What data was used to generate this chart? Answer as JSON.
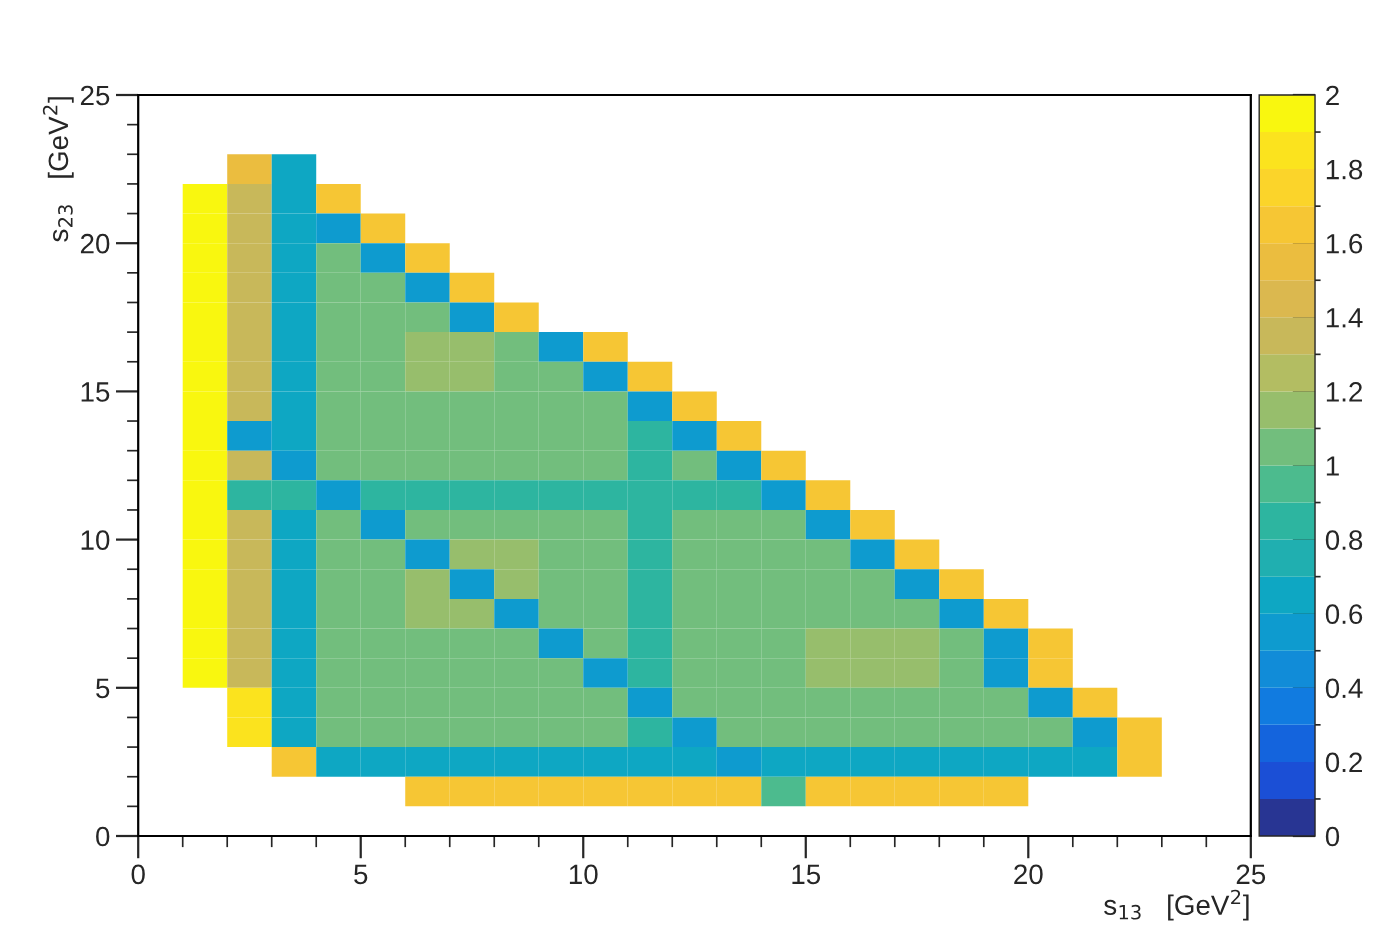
{
  "chart_data": {
    "type": "heatmap",
    "xlabel": "s$_{13}$   [GeV$^{2}$]",
    "ylabel": "s$_{23}$   [GeV$^{2}$]",
    "x": [
      0.5,
      1.5,
      2.5,
      3.5,
      4.5,
      5.5,
      6.5,
      7.5,
      8.5,
      9.5,
      10.5,
      11.5,
      12.5,
      13.5,
      14.5,
      15.5,
      16.5,
      17.5,
      18.5,
      19.5,
      20.5,
      21.5,
      22.5
    ],
    "y": [
      22.5,
      21.5,
      20.5,
      19.5,
      18.5,
      17.5,
      16.5,
      15.5,
      14.5,
      13.5,
      12.5,
      11.5,
      10.5,
      9.5,
      8.5,
      7.5,
      6.5,
      5.5,
      4.5,
      3.5,
      2.5,
      1.5
    ],
    "xlim": [
      0,
      25
    ],
    "ylim": [
      0,
      25
    ],
    "xticks": [
      0,
      {
        "value": 1,
        "label": null
      },
      {
        "value": 2,
        "label": null
      },
      {
        "value": 3,
        "label": null
      },
      {
        "value": 4,
        "label": null
      },
      5,
      {
        "value": 6,
        "label": null
      },
      {
        "value": 7,
        "label": null
      },
      {
        "value": 8,
        "label": null
      },
      {
        "value": 9,
        "label": null
      },
      10,
      {
        "value": 11,
        "label": null
      },
      {
        "value": 12,
        "label": null
      },
      {
        "value": 13,
        "label": null
      },
      {
        "value": 14,
        "label": null
      },
      15,
      {
        "value": 16,
        "label": null
      },
      {
        "value": 17,
        "label": null
      },
      {
        "value": 18,
        "label": null
      },
      {
        "value": 19,
        "label": null
      },
      20,
      {
        "value": 21,
        "label": null
      },
      {
        "value": 22,
        "label": null
      },
      {
        "value": 23,
        "label": null
      },
      {
        "value": 24,
        "label": null
      },
      25
    ],
    "yticks": [
      0,
      {
        "value": 1,
        "label": null
      },
      {
        "value": 2,
        "label": null
      },
      {
        "value": 3,
        "label": null
      },
      {
        "value": 4,
        "label": null
      },
      5,
      {
        "value": 6,
        "label": null
      },
      {
        "value": 7,
        "label": null
      },
      {
        "value": 8,
        "label": null
      },
      {
        "value": 9,
        "label": null
      },
      10,
      {
        "value": 11,
        "label": null
      },
      {
        "value": 12,
        "label": null
      },
      {
        "value": 13,
        "label": null
      },
      {
        "value": 14,
        "label": null
      },
      15,
      {
        "value": 16,
        "label": null
      },
      {
        "value": 17,
        "label": null
      },
      {
        "value": 18,
        "label": null
      },
      {
        "value": 19,
        "label": null
      },
      20,
      {
        "value": 21,
        "label": null
      },
      {
        "value": 22,
        "label": null
      },
      {
        "value": 23,
        "label": null
      },
      {
        "value": 24,
        "label": null
      },
      25
    ],
    "clim": [
      0,
      2
    ],
    "cticks": [
      0,
      0.2,
      0.4,
      0.6,
      0.8,
      1,
      1.2,
      1.4,
      1.6,
      1.8,
      2
    ],
    "colors": [
      "#283593",
      "#1b4fd6",
      "#1464dd",
      "#117be0",
      "#118cd8",
      "#0e9bcf",
      "#0ea7c3",
      "#20afb0",
      "#2db5a0",
      "#4cbb8e",
      "#72be7d",
      "#97be6c",
      "#b3bd62",
      "#c8b85a",
      "#dbb84f",
      "#ebbd3f",
      "#f6c634",
      "#fbd42a",
      "#fbe31e",
      "#f9f70f"
    ],
    "grid": false,
    "legend": false,
    "cells": [
      [
        null,
        null,
        1.5,
        0.7,
        null,
        null,
        null,
        null,
        null,
        null,
        null,
        null,
        null,
        null,
        null,
        null,
        null,
        null,
        null,
        null,
        null,
        null,
        null
      ],
      [
        null,
        2,
        1.3,
        0.7,
        1.7,
        null,
        null,
        null,
        null,
        null,
        null,
        null,
        null,
        null,
        null,
        null,
        null,
        null,
        null,
        null,
        null,
        null,
        null
      ],
      [
        null,
        2,
        1.3,
        0.7,
        0.6,
        1.7,
        null,
        null,
        null,
        null,
        null,
        null,
        null,
        null,
        null,
        null,
        null,
        null,
        null,
        null,
        null,
        null,
        null
      ],
      [
        null,
        2,
        1.3,
        0.7,
        1.05,
        0.6,
        1.7,
        null,
        null,
        null,
        null,
        null,
        null,
        null,
        null,
        null,
        null,
        null,
        null,
        null,
        null,
        null,
        null
      ],
      [
        null,
        2,
        1.3,
        0.7,
        1.05,
        1.05,
        0.6,
        1.7,
        null,
        null,
        null,
        null,
        null,
        null,
        null,
        null,
        null,
        null,
        null,
        null,
        null,
        null,
        null
      ],
      [
        null,
        2,
        1.3,
        0.7,
        1.05,
        1.05,
        1.05,
        0.6,
        1.7,
        null,
        null,
        null,
        null,
        null,
        null,
        null,
        null,
        null,
        null,
        null,
        null,
        null,
        null
      ],
      [
        null,
        2,
        1.3,
        0.7,
        1.05,
        1.05,
        1.15,
        1.15,
        1.05,
        0.6,
        1.7,
        null,
        null,
        null,
        null,
        null,
        null,
        null,
        null,
        null,
        null,
        null,
        null
      ],
      [
        null,
        2,
        1.3,
        0.7,
        1.05,
        1.05,
        1.15,
        1.15,
        1.05,
        1.05,
        0.6,
        1.7,
        null,
        null,
        null,
        null,
        null,
        null,
        null,
        null,
        null,
        null,
        null
      ],
      [
        null,
        2,
        1.3,
        0.7,
        1.05,
        1.05,
        1.05,
        1.05,
        1.05,
        1.05,
        1.05,
        0.6,
        1.7,
        null,
        null,
        null,
        null,
        null,
        null,
        null,
        null,
        null,
        null
      ],
      [
        null,
        2,
        0.6,
        0.7,
        1.05,
        1.05,
        1.05,
        1.05,
        1.05,
        1.05,
        1.05,
        0.8,
        0.6,
        1.7,
        null,
        null,
        null,
        null,
        null,
        null,
        null,
        null,
        null
      ],
      [
        null,
        2,
        1.3,
        0.6,
        1.05,
        1.05,
        1.05,
        1.05,
        1.05,
        1.05,
        1.05,
        0.8,
        1.05,
        0.6,
        1.7,
        null,
        null,
        null,
        null,
        null,
        null,
        null,
        null
      ],
      [
        null,
        2,
        0.8,
        0.8,
        0.6,
        0.8,
        0.8,
        0.8,
        0.8,
        0.8,
        0.8,
        0.8,
        0.8,
        0.8,
        0.6,
        1.7,
        null,
        null,
        null,
        null,
        null,
        null,
        null
      ],
      [
        null,
        2,
        1.3,
        0.7,
        1.05,
        0.6,
        1.05,
        1.05,
        1.05,
        1.05,
        1.05,
        0.8,
        1.05,
        1.05,
        1.05,
        0.6,
        1.7,
        null,
        null,
        null,
        null,
        null,
        null
      ],
      [
        null,
        2,
        1.3,
        0.7,
        1.05,
        1.05,
        0.6,
        1.15,
        1.15,
        1.05,
        1.05,
        0.8,
        1.05,
        1.05,
        1.05,
        1.05,
        0.6,
        1.7,
        null,
        null,
        null,
        null,
        null
      ],
      [
        null,
        2,
        1.3,
        0.7,
        1.05,
        1.05,
        1.15,
        0.6,
        1.15,
        1.05,
        1.05,
        0.8,
        1.05,
        1.05,
        1.05,
        1.05,
        1.05,
        0.6,
        1.7,
        null,
        null,
        null,
        null
      ],
      [
        null,
        2,
        1.3,
        0.7,
        1.05,
        1.05,
        1.15,
        1.15,
        0.6,
        1.05,
        1.05,
        0.8,
        1.05,
        1.05,
        1.05,
        1.05,
        1.05,
        1.05,
        0.6,
        1.7,
        null,
        null,
        null
      ],
      [
        null,
        2,
        1.3,
        0.7,
        1.05,
        1.05,
        1.05,
        1.05,
        1.05,
        0.6,
        1.05,
        0.8,
        1.05,
        1.05,
        1.05,
        1.15,
        1.15,
        1.15,
        1.05,
        0.6,
        1.7,
        null,
        null
      ],
      [
        null,
        2,
        1.3,
        0.7,
        1.05,
        1.05,
        1.05,
        1.05,
        1.05,
        1.05,
        0.6,
        0.8,
        1.05,
        1.05,
        1.05,
        1.15,
        1.15,
        1.15,
        1.05,
        0.6,
        1.7,
        null,
        null
      ],
      [
        null,
        null,
        1.8,
        0.7,
        1.05,
        1.05,
        1.05,
        1.05,
        1.05,
        1.05,
        1.05,
        0.6,
        1.05,
        1.05,
        1.05,
        1.05,
        1.05,
        1.05,
        1.05,
        1.05,
        0.6,
        1.7,
        null
      ],
      [
        null,
        null,
        1.8,
        0.7,
        1.05,
        1.05,
        1.05,
        1.05,
        1.05,
        1.05,
        1.05,
        0.8,
        0.6,
        1.05,
        1.05,
        1.05,
        1.05,
        1.05,
        1.05,
        1.05,
        1.05,
        0.6,
        1.7
      ],
      [
        null,
        null,
        null,
        1.6,
        0.7,
        0.7,
        0.7,
        0.7,
        0.7,
        0.7,
        0.7,
        0.7,
        0.7,
        0.6,
        0.7,
        0.7,
        0.7,
        0.7,
        0.7,
        0.7,
        0.7,
        0.7,
        1.6
      ],
      [
        null,
        null,
        null,
        null,
        null,
        null,
        1.6,
        1.6,
        1.6,
        1.6,
        1.6,
        1.6,
        1.6,
        1.6,
        0.9,
        1.6,
        1.6,
        1.6,
        1.6,
        1.6,
        null,
        null,
        null
      ]
    ]
  }
}
